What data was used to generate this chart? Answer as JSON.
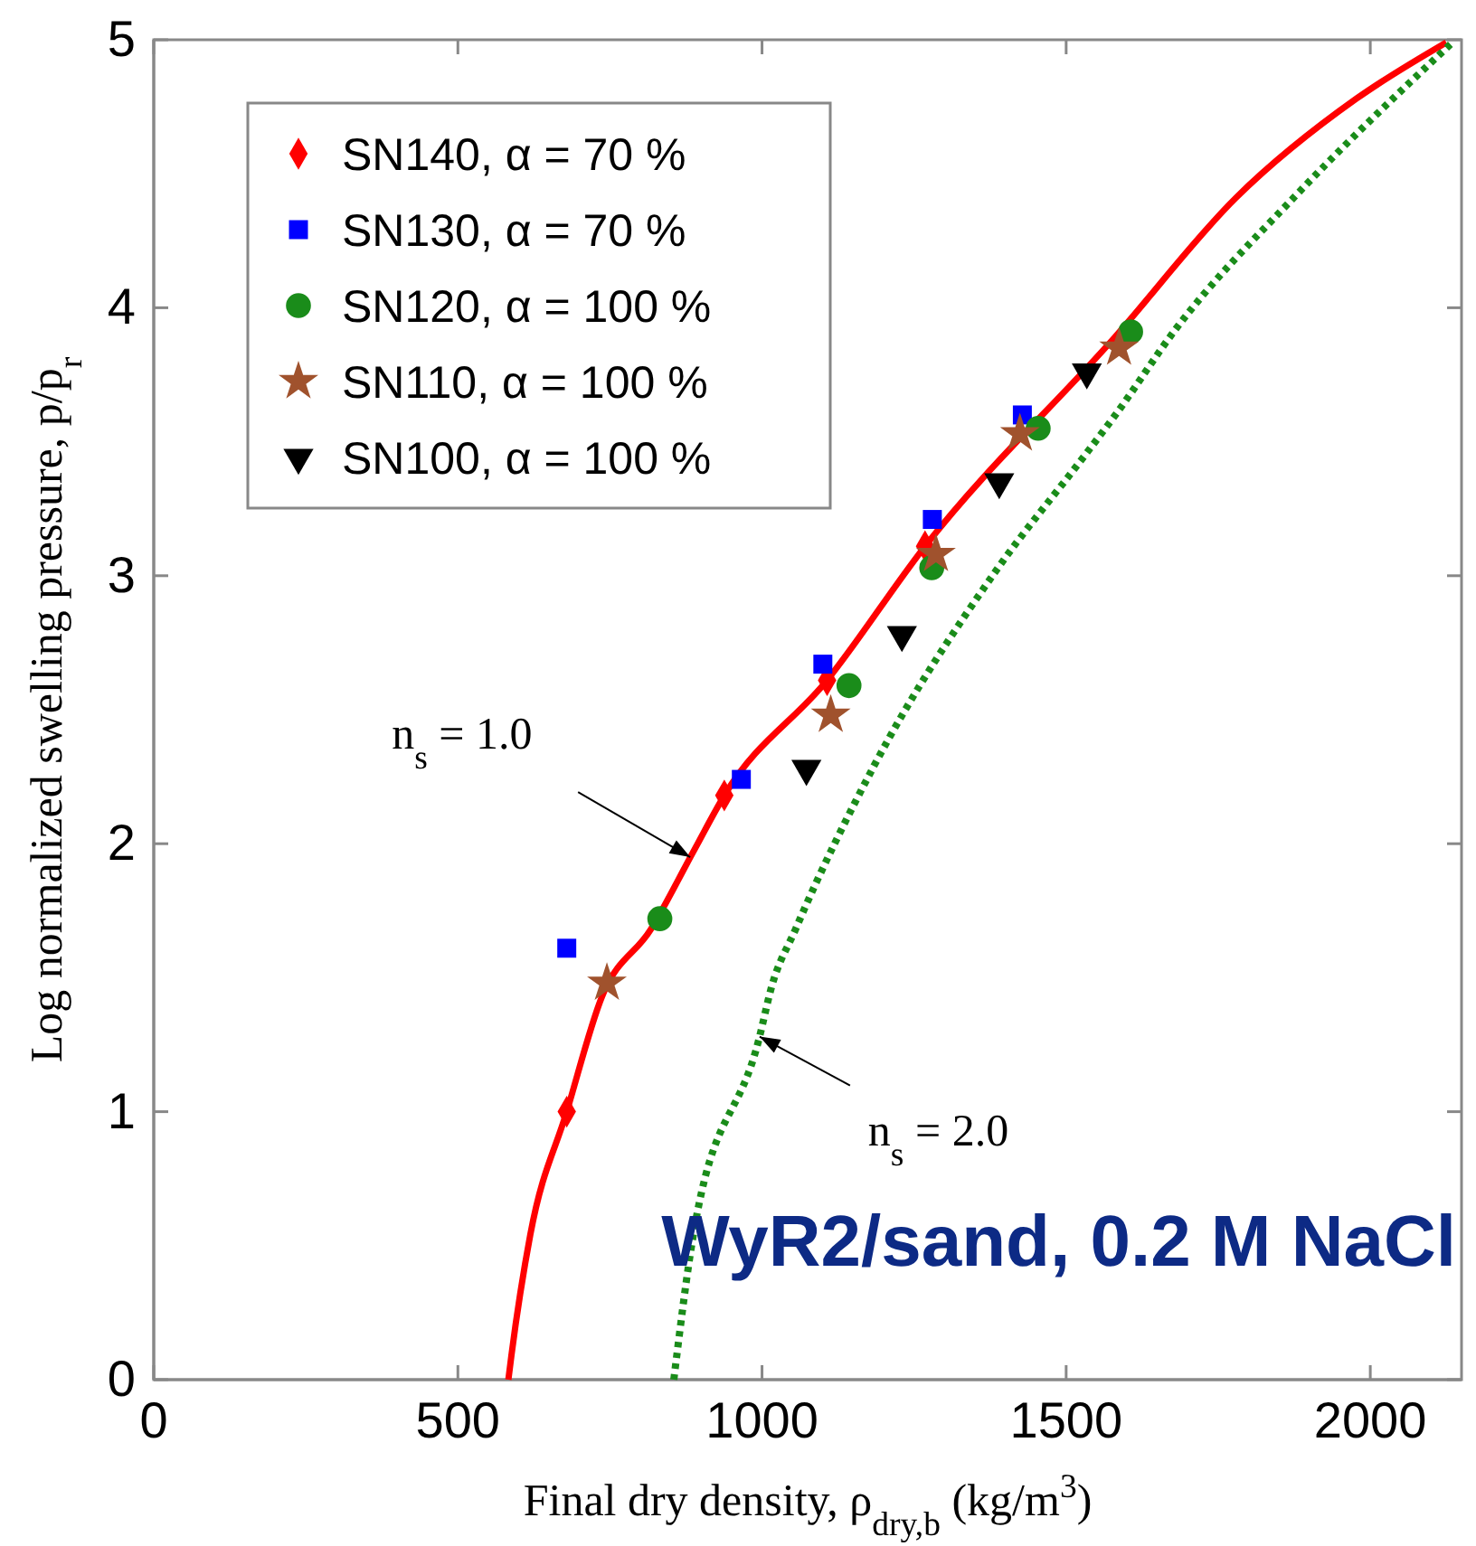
{
  "chart_data": {
    "type": "scatter",
    "xlabel": "Final dry density, ρ$_{dry,b}$ (kg/m$^{3}$)",
    "ylabel": "Log normalized swelling pressure, p/p$_{r}$",
    "xlim": [
      0,
      2150
    ],
    "xticks": [
      0,
      500,
      1000,
      1500,
      2000
    ],
    "ylim": [
      0,
      5
    ],
    "yticks": [
      0,
      1,
      2,
      3,
      4,
      5
    ],
    "grid": false,
    "legend": "top left",
    "series": [
      {
        "type": "line",
        "color": "#ff0000",
        "line_style": "solid",
        "marker": "none",
        "x": [
          583,
          588,
          619,
          679,
          737,
          817,
          887,
          938,
          1107,
          1268,
          1580,
          1779,
          1977,
          2125
        ],
        "values": [
          0,
          0.09,
          0.54,
          1.0,
          1.43,
          1.68,
          1.97,
          2.18,
          2.61,
          3.11,
          3.89,
          4.41,
          4.78,
          4.99
        ]
      },
      {
        "type": "line",
        "color": "#1a8c1a",
        "line_style": "dotted",
        "marker": "none",
        "x": [
          855,
          887,
          996,
          1015,
          1055,
          1184,
          1382,
          1531,
          1581,
          1680,
          1878,
          2135
        ],
        "values": [
          0,
          0.54,
          1.28,
          1.46,
          1.68,
          2.29,
          3.01,
          3.45,
          3.6,
          3.92,
          4.42,
          4.99
        ]
      },
      {
        "name": "SN140, α = 70 %",
        "color": "#ff0000",
        "marker": "diamond",
        "x": [
          679,
          938,
          1107,
          1268
        ],
        "values": [
          1.0,
          2.18,
          2.61,
          3.11
        ]
      },
      {
        "name": "SN130, α = 70 %",
        "color": "#0000ff",
        "marker": "square",
        "x": [
          679,
          966,
          1100,
          1280,
          1428
        ],
        "values": [
          1.61,
          2.24,
          2.67,
          3.21,
          3.6
        ]
      },
      {
        "name": "SN120, α = 100 %",
        "color": "#1a8c1a",
        "marker": "circle",
        "x": [
          832,
          1143,
          1279,
          1454,
          1606
        ],
        "values": [
          1.72,
          2.59,
          3.03,
          3.55,
          3.91
        ]
      },
      {
        "name": "SN110, α = 100 %",
        "color": "#a0522d",
        "marker": "star",
        "x": [
          745,
          1113,
          1286,
          1424,
          1587
        ],
        "values": [
          1.48,
          2.48,
          3.08,
          3.53,
          3.85
        ]
      },
      {
        "name": "SN100, α = 100 %",
        "color": "#000000",
        "marker": "triangle",
        "x": [
          1073,
          1230,
          1390,
          1534
        ],
        "values": [
          2.28,
          2.78,
          3.35,
          3.76
        ]
      }
    ],
    "annotations": [
      {
        "text": "n$_{s}$ = 1.0",
        "x": 882,
        "y": 1.95
      },
      {
        "text": "n$_{s}$ = 2.0",
        "x": 996,
        "y": 1.28
      },
      "WyR2/sand, 0.2 M NaCl"
    ]
  }
}
